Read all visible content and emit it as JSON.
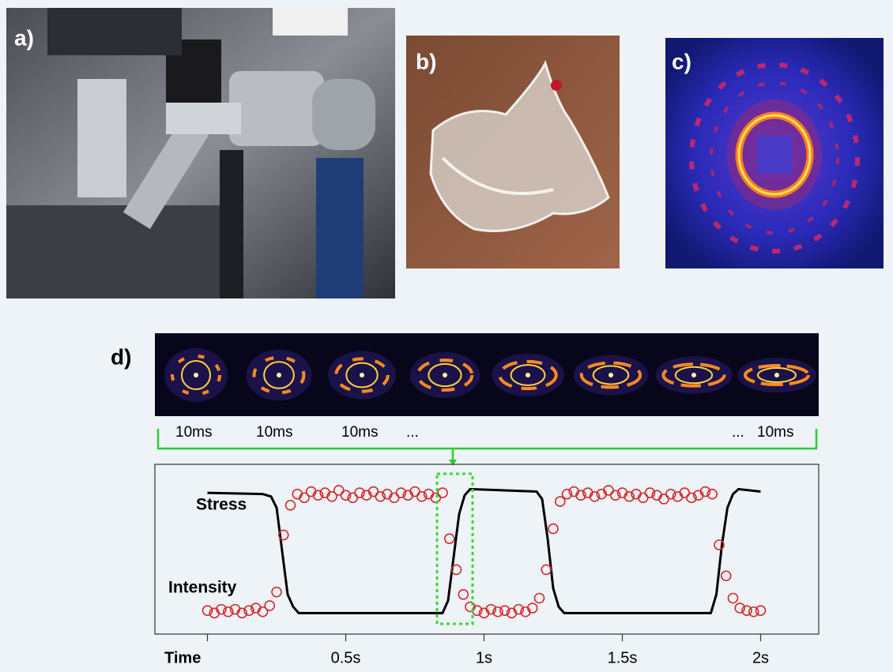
{
  "panels": {
    "a": "a)",
    "b": "b)",
    "c": "c)",
    "d": "d)"
  },
  "frame_labels": [
    "10ms",
    "10ms",
    "10ms",
    "...",
    "...",
    "10ms"
  ],
  "chart_data": {
    "type": "line",
    "x_label": "Time",
    "xlim": [
      -0.19,
      2.21
    ],
    "ylim": [
      -0.17,
      1.2
    ],
    "xticks": [
      {
        "value": 0,
        "label": null
      },
      {
        "value": 0.5,
        "label": "0.5s"
      },
      {
        "value": 1,
        "label": "1s"
      },
      {
        "value": 1.5,
        "label": "1.5s"
      },
      {
        "value": 2,
        "label": "2s"
      }
    ],
    "series": [
      {
        "name": "Stress",
        "type": "line",
        "color": "#000000",
        "x": [
          0,
          0.2,
          0.23,
          0.25,
          0.27,
          0.29,
          0.31,
          0.33,
          0.85,
          0.87,
          0.89,
          0.91,
          0.93,
          0.95,
          1.19,
          1.21,
          1.23,
          1.25,
          1.27,
          1.29,
          1.82,
          1.84,
          1.86,
          1.88,
          1.9,
          1.92,
          2.0
        ],
        "values": [
          0.97,
          0.96,
          0.94,
          0.85,
          0.5,
          0.15,
          0.05,
          0,
          0,
          0.1,
          0.45,
          0.8,
          0.95,
          1,
          0.98,
          0.92,
          0.6,
          0.2,
          0.05,
          0,
          0,
          0.15,
          0.55,
          0.85,
          0.96,
          1,
          0.98
        ]
      },
      {
        "name": "Intensity",
        "type": "scatter",
        "color": "#d42a2a",
        "x": [
          0,
          0.025,
          0.05,
          0.075,
          0.1,
          0.125,
          0.15,
          0.175,
          0.2,
          0.225,
          0.25,
          0.275,
          0.3,
          0.325,
          0.35,
          0.375,
          0.4,
          0.425,
          0.45,
          0.475,
          0.5,
          0.525,
          0.55,
          0.575,
          0.6,
          0.625,
          0.65,
          0.675,
          0.7,
          0.725,
          0.75,
          0.775,
          0.8,
          0.825,
          0.85,
          0.875,
          0.9,
          0.925,
          0.95,
          0.975,
          1.0,
          1.025,
          1.05,
          1.075,
          1.1,
          1.125,
          1.15,
          1.175,
          1.2,
          1.225,
          1.25,
          1.275,
          1.3,
          1.325,
          1.35,
          1.375,
          1.4,
          1.425,
          1.45,
          1.475,
          1.5,
          1.525,
          1.55,
          1.575,
          1.6,
          1.625,
          1.65,
          1.675,
          1.7,
          1.725,
          1.75,
          1.775,
          1.8,
          1.825,
          1.85,
          1.875,
          1.9,
          1.925,
          1.95,
          1.975,
          2.0
        ],
        "values": [
          0.02,
          0.0,
          0.03,
          0.01,
          0.03,
          0.0,
          0.02,
          0.04,
          0.01,
          0.06,
          0.17,
          0.63,
          0.87,
          0.96,
          0.93,
          0.98,
          0.95,
          0.97,
          0.94,
          0.99,
          0.95,
          0.93,
          0.97,
          0.95,
          0.98,
          0.94,
          0.96,
          0.93,
          0.97,
          0.95,
          0.98,
          0.94,
          0.96,
          0.93,
          0.97,
          0.6,
          0.35,
          0.15,
          0.05,
          0.02,
          0.0,
          0.03,
          0.01,
          0.02,
          0.0,
          0.03,
          0.01,
          0.04,
          0.12,
          0.35,
          0.68,
          0.9,
          0.96,
          0.98,
          0.95,
          0.97,
          0.94,
          0.96,
          0.99,
          0.95,
          0.97,
          0.94,
          0.96,
          0.93,
          0.97,
          0.95,
          0.92,
          0.96,
          0.94,
          0.97,
          0.93,
          0.95,
          0.98,
          0.96,
          0.55,
          0.3,
          0.12,
          0.04,
          0.02,
          0.01,
          0.02
        ]
      }
    ]
  }
}
